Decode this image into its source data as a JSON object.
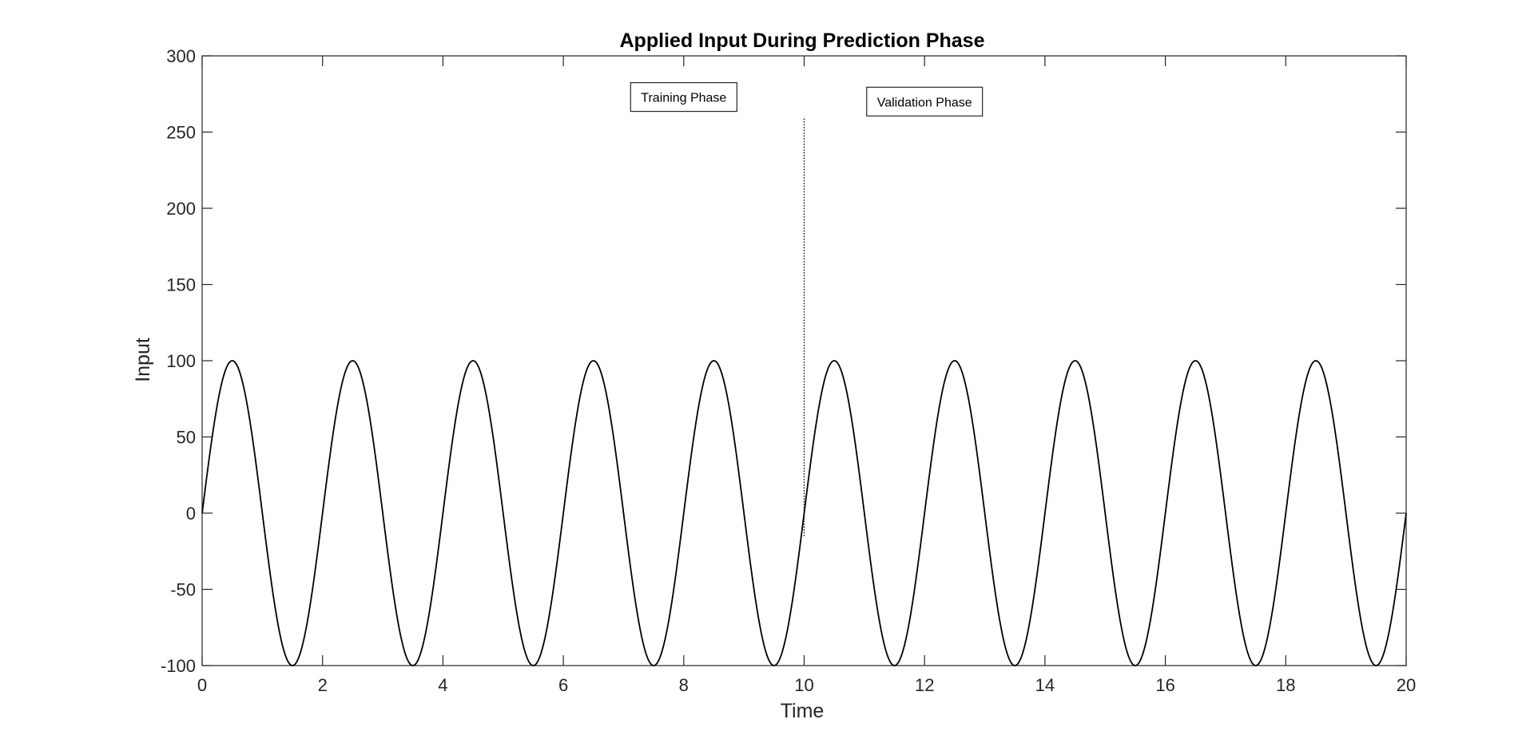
{
  "chart_data": {
    "type": "line",
    "title": "Applied Input During Prediction Phase",
    "xlabel": "Time",
    "ylabel": "Input",
    "xlim": [
      0,
      20
    ],
    "ylim": [
      -100,
      300
    ],
    "xticks": [
      0,
      2,
      4,
      6,
      8,
      10,
      12,
      14,
      16,
      18,
      20
    ],
    "xtick_labels": [
      "0",
      "2",
      "4",
      "6",
      "8",
      "10",
      "12",
      "14",
      "16",
      "18",
      "20"
    ],
    "yticks": [
      -100,
      -50,
      0,
      50,
      100,
      150,
      200,
      250,
      300
    ],
    "ytick_labels": [
      "-100",
      "-50",
      "0",
      "50",
      "100",
      "150",
      "200",
      "250",
      "300"
    ],
    "grid": false,
    "series": [
      {
        "function": "100*sin(pi*t)",
        "amplitude": 100,
        "period": 2,
        "x_range": [
          0,
          20
        ],
        "color": "#000000"
      }
    ],
    "reference_line": {
      "x": 10,
      "y_range": [
        -15,
        260
      ],
      "style": "dotted",
      "color": "#000000"
    },
    "annotations": [
      {
        "text": "Training Phase",
        "x": 8,
        "y": 273
      },
      {
        "text": "Validation Phase",
        "x": 12,
        "y": 270
      }
    ]
  }
}
